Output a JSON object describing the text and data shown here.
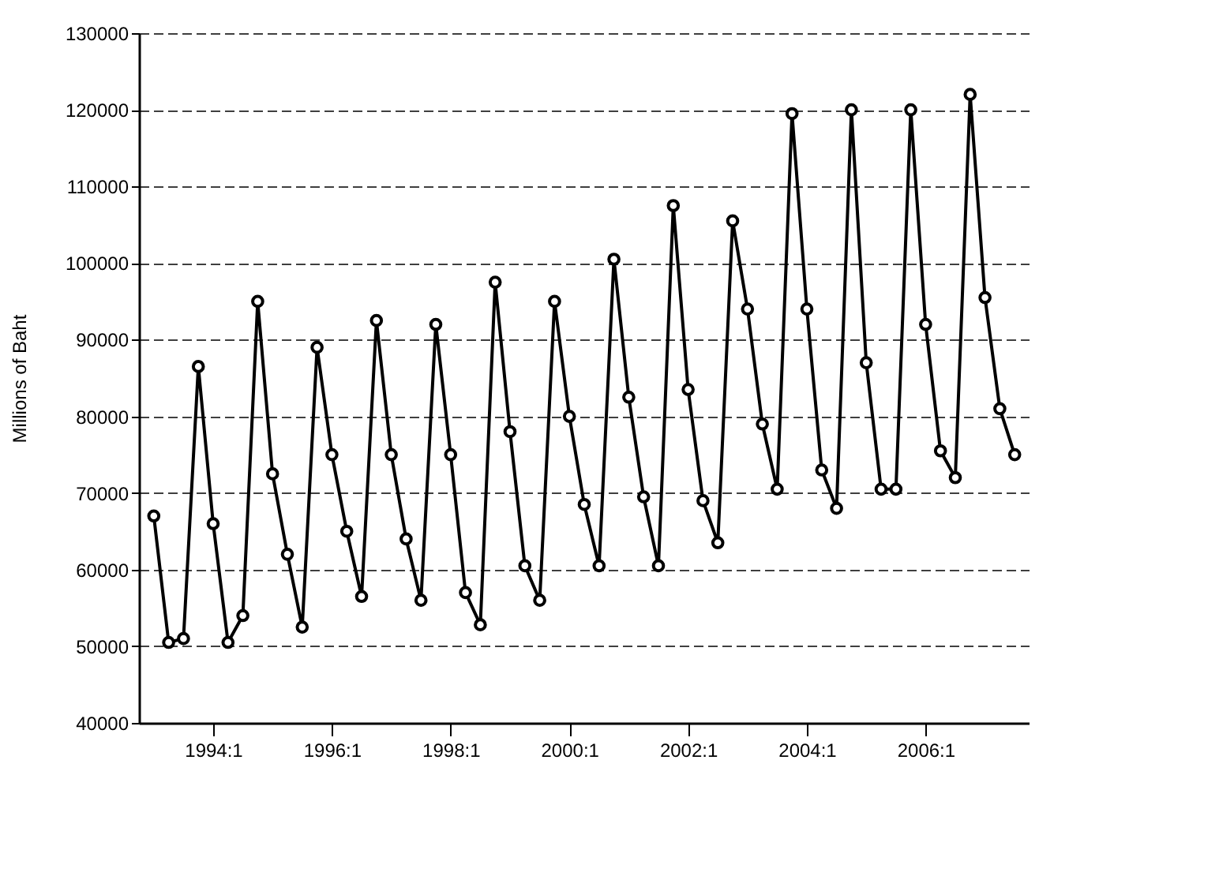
{
  "chart_data": {
    "type": "line",
    "ylabel": "Millions of Baht",
    "categories": [
      null,
      null,
      null,
      null,
      "1994:1",
      null,
      null,
      null,
      null,
      null,
      null,
      null,
      "1996:1",
      null,
      null,
      null,
      null,
      null,
      null,
      null,
      "1998:1",
      null,
      null,
      null,
      null,
      null,
      null,
      null,
      "2000:1",
      null,
      null,
      null,
      null,
      null,
      null,
      null,
      "2002:1",
      null,
      null,
      null,
      null,
      null,
      null,
      null,
      "2004:1",
      null,
      null,
      null,
      null,
      null,
      null,
      null,
      "2006:1",
      null,
      null,
      null,
      null,
      null,
      null
    ],
    "series": [
      {
        "color": "#000000",
        "values": [
          67000,
          50500,
          51000,
          86500,
          66000,
          50500,
          54000,
          95000,
          72500,
          62000,
          52500,
          89000,
          75000,
          65000,
          56500,
          92500,
          75000,
          64000,
          56000,
          92000,
          75000,
          57000,
          52800,
          97500,
          78000,
          60500,
          56000,
          95000,
          80000,
          68500,
          60500,
          100500,
          82500,
          69500,
          60500,
          107500,
          83500,
          69000,
          63500,
          105500,
          94000,
          79000,
          70500,
          119500,
          94000,
          73000,
          68000,
          120000,
          87000,
          70500,
          70500,
          120000,
          92000,
          75500,
          72000,
          122000,
          95500,
          81000,
          75000
        ]
      }
    ],
    "ylim": [
      40000,
      130000
    ],
    "yticks": [
      40000,
      50000,
      60000,
      70000,
      80000,
      90000,
      100000,
      110000,
      120000,
      130000
    ],
    "grid": "y",
    "marker": "circle",
    "line_style": "solid"
  }
}
